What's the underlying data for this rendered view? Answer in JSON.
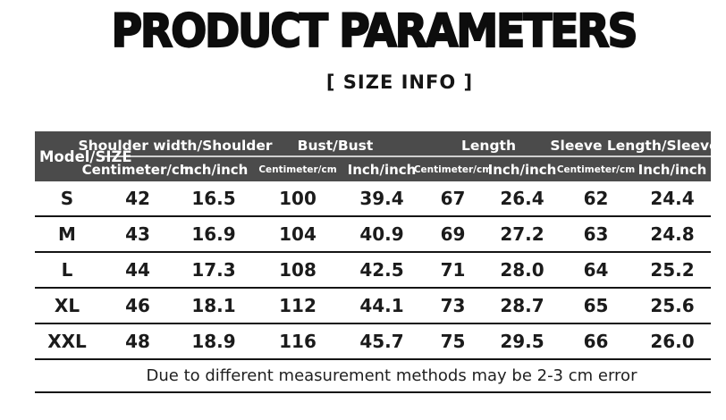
{
  "header": {
    "title": "PRODUCT PARAMETERS",
    "subtitle": "[ SIZE  INFO ]"
  },
  "table": {
    "model_header": "Model/SIZE",
    "groups": [
      {
        "label": "Shoulder width/Shoulder"
      },
      {
        "label": "Bust/Bust"
      },
      {
        "label": "Length"
      },
      {
        "label": "Sleeve Length/Sleeve"
      }
    ],
    "unit_cm": "Centimeter/cm",
    "unit_inch": "Inch/inch",
    "rows": [
      {
        "size": "S",
        "values": [
          "42",
          "16.5",
          "100",
          "39.4",
          "67",
          "26.4",
          "62",
          "24.4"
        ]
      },
      {
        "size": "M",
        "values": [
          "43",
          "16.9",
          "104",
          "40.9",
          "69",
          "27.2",
          "63",
          "24.8"
        ]
      },
      {
        "size": "L",
        "values": [
          "44",
          "17.3",
          "108",
          "42.5",
          "71",
          "28.0",
          "64",
          "25.2"
        ]
      },
      {
        "size": "XL",
        "values": [
          "46",
          "18.1",
          "112",
          "44.1",
          "73",
          "28.7",
          "65",
          "25.6"
        ]
      },
      {
        "size": "XXL",
        "values": [
          "48",
          "18.9",
          "116",
          "45.7",
          "75",
          "29.5",
          "66",
          "26.0"
        ]
      }
    ],
    "note": "Due to different measurement methods may be 2-3 cm error"
  },
  "colors": {
    "header_bg": "#4b4b4b",
    "header_text": "#ffffff",
    "line": "#151515"
  }
}
